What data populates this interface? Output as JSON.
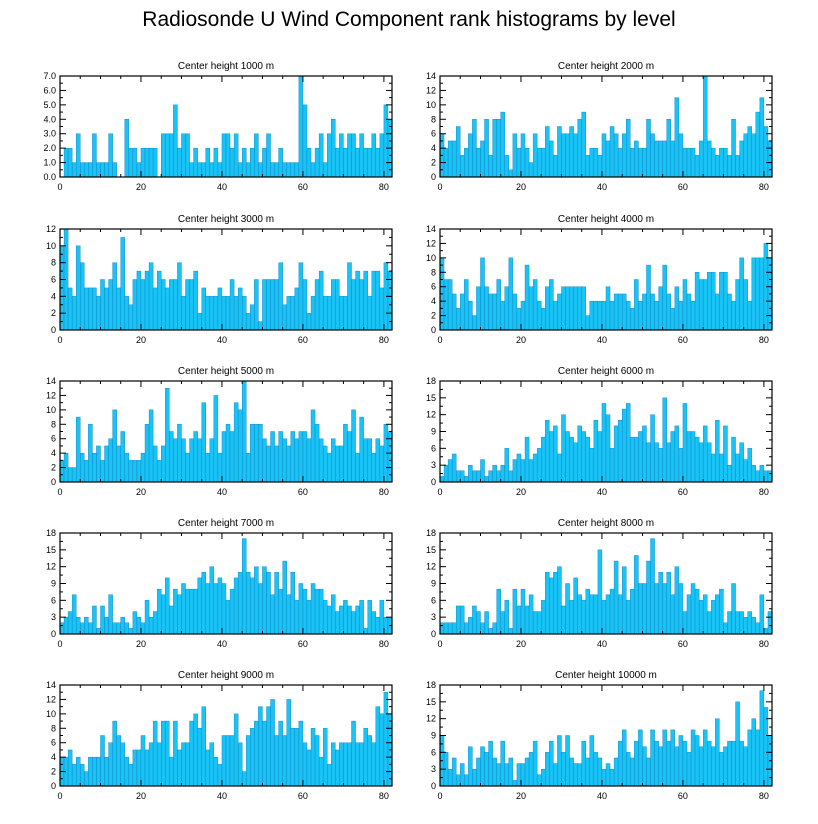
{
  "title": "Radiosonde U Wind Component rank histograms by level",
  "colors": {
    "bar": "#19c3f5",
    "bar_edge": "#0b7fbf"
  },
  "chart_data": [
    {
      "type": "bar",
      "title": "Center height 1000 m",
      "xlim": [
        0,
        82
      ],
      "xticks": [
        0,
        20,
        40,
        60,
        80
      ],
      "ylim": [
        0,
        7
      ],
      "yticks": [
        0,
        1,
        2,
        3,
        4,
        5,
        6,
        7
      ],
      "yticklabels": [
        "0.0",
        "1.0",
        "2.0",
        "3.0",
        "4.0",
        "5.0",
        "6.0",
        "7.0"
      ],
      "values": [
        0,
        2,
        2,
        1,
        3,
        1,
        1,
        1,
        3,
        1,
        1,
        1,
        3,
        1,
        0,
        0,
        4,
        2,
        2,
        1,
        2,
        2,
        2,
        2,
        0,
        3,
        3,
        3,
        5,
        2,
        3,
        3,
        1,
        2,
        1,
        1,
        2,
        1,
        2,
        1,
        3,
        3,
        2,
        3,
        1,
        2,
        1,
        2,
        3,
        1,
        2,
        3,
        1,
        1,
        2,
        1,
        1,
        1,
        1,
        7,
        5,
        2,
        1,
        2,
        3,
        1,
        3,
        4,
        2,
        3,
        2,
        3,
        3,
        2,
        3,
        2,
        2,
        3,
        2,
        3,
        5,
        4
      ]
    },
    {
      "type": "bar",
      "title": "Center height 2000 m",
      "xlim": [
        0,
        82
      ],
      "xticks": [
        0,
        20,
        40,
        60,
        80
      ],
      "ylim": [
        0,
        14
      ],
      "yticks": [
        0,
        2,
        4,
        6,
        8,
        10,
        12,
        14
      ],
      "yticklabels": [
        "0",
        "2",
        "4",
        "6",
        "8",
        "10",
        "12",
        "14"
      ],
      "values": [
        6,
        4,
        5,
        5,
        7,
        3,
        4,
        6,
        8,
        4,
        5,
        8,
        3,
        8,
        8,
        9,
        3,
        1,
        6,
        4,
        6,
        4,
        2,
        6,
        4,
        4,
        7,
        5,
        3,
        7,
        6,
        6,
        7,
        6,
        8,
        9,
        3,
        4,
        4,
        3,
        6,
        5,
        7,
        6,
        4,
        6,
        8,
        4,
        5,
        4,
        4,
        8,
        6,
        5,
        5,
        5,
        8,
        5,
        11,
        6,
        4,
        4,
        4,
        3,
        5,
        14,
        5,
        4,
        3,
        4,
        4,
        3,
        8,
        3,
        5,
        6,
        7,
        6,
        9,
        11,
        7,
        5
      ]
    },
    {
      "type": "bar",
      "title": "Center height 3000 m",
      "xlim": [
        0,
        82
      ],
      "xticks": [
        0,
        20,
        40,
        60,
        80
      ],
      "ylim": [
        0,
        12
      ],
      "yticks": [
        0,
        2,
        4,
        6,
        8,
        10,
        12
      ],
      "yticklabels": [
        "0",
        "2",
        "4",
        "6",
        "8",
        "10",
        "12"
      ],
      "values": [
        10,
        12,
        5,
        4,
        10,
        8,
        5,
        5,
        5,
        4,
        6,
        5,
        6,
        8,
        5,
        11,
        4,
        3,
        6,
        7,
        6,
        7,
        8,
        5,
        7,
        6,
        5,
        6,
        6,
        8,
        4,
        6,
        6,
        7,
        2,
        5,
        4,
        4,
        4,
        5,
        4,
        4,
        6,
        4,
        5,
        4,
        2,
        3,
        6,
        1,
        6,
        6,
        6,
        6,
        8,
        3,
        4,
        4,
        5,
        8,
        6,
        2,
        4,
        6,
        7,
        4,
        4,
        6,
        6,
        4,
        4,
        8,
        6,
        7,
        6,
        7,
        4,
        7,
        7,
        5,
        8,
        7
      ]
    },
    {
      "type": "bar",
      "title": "Center height 4000 m",
      "xlim": [
        0,
        82
      ],
      "xticks": [
        0,
        20,
        40,
        60,
        80
      ],
      "ylim": [
        0,
        14
      ],
      "yticks": [
        0,
        2,
        4,
        6,
        8,
        10,
        12,
        14
      ],
      "yticklabels": [
        "0",
        "2",
        "4",
        "6",
        "8",
        "10",
        "12",
        "14"
      ],
      "values": [
        10,
        7,
        7,
        5,
        3,
        5,
        7,
        4,
        2,
        6,
        10,
        6,
        5,
        5,
        7,
        4,
        6,
        10,
        5,
        3,
        4,
        9,
        6,
        7,
        4,
        3,
        6,
        7,
        4,
        5,
        6,
        6,
        6,
        6,
        6,
        6,
        2,
        4,
        4,
        4,
        4,
        6,
        4,
        5,
        5,
        5,
        4,
        3,
        7,
        4,
        5,
        9,
        5,
        4,
        6,
        9,
        5,
        3,
        6,
        4,
        7,
        5,
        4,
        8,
        7,
        7,
        8,
        8,
        5,
        8,
        8,
        5,
        4,
        7,
        10,
        7,
        4,
        10,
        10,
        10,
        12,
        10
      ]
    },
    {
      "type": "bar",
      "title": "Center height 5000 m",
      "xlim": [
        0,
        82
      ],
      "xticks": [
        0,
        20,
        40,
        60,
        80
      ],
      "ylim": [
        0,
        14
      ],
      "yticks": [
        0,
        2,
        4,
        6,
        8,
        10,
        12,
        14
      ],
      "yticklabels": [
        "0",
        "2",
        "4",
        "6",
        "8",
        "10",
        "12",
        "14"
      ],
      "values": [
        3,
        4,
        2,
        2,
        9,
        4,
        3,
        8,
        4,
        5,
        3,
        5,
        6,
        10,
        5,
        7,
        4,
        3,
        3,
        3,
        4,
        8,
        10,
        5,
        3,
        5,
        13,
        7,
        6,
        8,
        6,
        4,
        6,
        7,
        6,
        11,
        4,
        6,
        12,
        4,
        7,
        8,
        7,
        11,
        10,
        14,
        4,
        8,
        8,
        8,
        6,
        5,
        7,
        5,
        7,
        6,
        5,
        7,
        6,
        7,
        7,
        6,
        10,
        8,
        6,
        5,
        4,
        6,
        5,
        5,
        8,
        7,
        10,
        4,
        9,
        6,
        6,
        4,
        6,
        5,
        8,
        7
      ]
    },
    {
      "type": "bar",
      "title": "Center height 6000 m",
      "xlim": [
        0,
        82
      ],
      "xticks": [
        0,
        20,
        40,
        60,
        80
      ],
      "ylim": [
        0,
        18
      ],
      "yticks": [
        0,
        3,
        6,
        9,
        12,
        15,
        18
      ],
      "yticklabels": [
        "0",
        "3",
        "6",
        "9",
        "12",
        "15",
        "18"
      ],
      "values": [
        1,
        3,
        4,
        5,
        2,
        2,
        1,
        3,
        2,
        2,
        4,
        1,
        2,
        3,
        2,
        3,
        6,
        2,
        4,
        5,
        4,
        8,
        4,
        5,
        6,
        8,
        11,
        9,
        10,
        5,
        12,
        9,
        8,
        7,
        10,
        9,
        8,
        6,
        11,
        9,
        14,
        12,
        6,
        10,
        11,
        13,
        14,
        8,
        8,
        9,
        10,
        7,
        12,
        7,
        6,
        15,
        7,
        9,
        10,
        6,
        14,
        9,
        9,
        8,
        7,
        10,
        7,
        5,
        11,
        5,
        10,
        3,
        8,
        5,
        7,
        4,
        6,
        3,
        2,
        3,
        2,
        2
      ]
    },
    {
      "type": "bar",
      "title": "Center height 7000 m",
      "xlim": [
        0,
        82
      ],
      "xticks": [
        0,
        20,
        40,
        60,
        80
      ],
      "ylim": [
        0,
        18
      ],
      "yticks": [
        0,
        3,
        6,
        9,
        12,
        15,
        18
      ],
      "yticklabels": [
        "0",
        "3",
        "6",
        "9",
        "12",
        "15",
        "18"
      ],
      "values": [
        2,
        3,
        4,
        7,
        3,
        2,
        3,
        2,
        5,
        1,
        5,
        3,
        7,
        2,
        2,
        3,
        2,
        1,
        4,
        3,
        2,
        6,
        3,
        4,
        8,
        7,
        10,
        5,
        8,
        7,
        9,
        8,
        8,
        8,
        10,
        11,
        9,
        12,
        9,
        10,
        9,
        6,
        8,
        10,
        11,
        17,
        11,
        10,
        12,
        9,
        12,
        11,
        7,
        11,
        8,
        13,
        7,
        11,
        6,
        9,
        8,
        6,
        9,
        8,
        8,
        6,
        5,
        7,
        4,
        5,
        6,
        5,
        4,
        5,
        6,
        1,
        6,
        4,
        3,
        6,
        3,
        3
      ]
    },
    {
      "type": "bar",
      "title": "Center height 8000 m",
      "xlim": [
        0,
        82
      ],
      "xticks": [
        0,
        20,
        40,
        60,
        80
      ],
      "ylim": [
        0,
        18
      ],
      "yticks": [
        0,
        3,
        6,
        9,
        12,
        15,
        18
      ],
      "yticklabels": [
        "0",
        "3",
        "6",
        "9",
        "12",
        "15",
        "18"
      ],
      "values": [
        2,
        2,
        2,
        2,
        5,
        5,
        2,
        3,
        5,
        4,
        2,
        4,
        1,
        2,
        8,
        4,
        6,
        1,
        8,
        5,
        8,
        5,
        7,
        4,
        4,
        6,
        11,
        10,
        11,
        12,
        5,
        9,
        6,
        10,
        7,
        6,
        8,
        7,
        7,
        15,
        6,
        7,
        8,
        13,
        7,
        12,
        6,
        8,
        14,
        9,
        9,
        13,
        17,
        9,
        11,
        9,
        11,
        7,
        12,
        9,
        4,
        7,
        9,
        8,
        6,
        7,
        4,
        6,
        7,
        8,
        2,
        4,
        9,
        4,
        4,
        3,
        4,
        3,
        2,
        7,
        1,
        4
      ]
    },
    {
      "type": "bar",
      "title": "Center height 9000 m",
      "xlim": [
        0,
        82
      ],
      "xticks": [
        0,
        20,
        40,
        60,
        80
      ],
      "ylim": [
        0,
        14
      ],
      "yticks": [
        0,
        2,
        4,
        6,
        8,
        10,
        12,
        14
      ],
      "yticklabels": [
        "0",
        "2",
        "4",
        "6",
        "8",
        "10",
        "12",
        "14"
      ],
      "values": [
        4,
        4,
        5,
        3,
        4,
        3,
        2,
        4,
        4,
        4,
        7,
        4,
        6,
        9,
        7,
        6,
        4,
        3,
        5,
        5,
        7,
        5,
        6,
        9,
        6,
        9,
        9,
        4,
        9,
        5,
        6,
        6,
        9,
        10,
        8,
        11,
        5,
        6,
        4,
        3,
        7,
        7,
        7,
        10,
        6,
        2,
        7,
        8,
        9,
        11,
        9,
        11,
        12,
        7,
        9,
        7,
        12,
        8,
        8,
        9,
        6,
        5,
        8,
        7,
        4,
        8,
        3,
        6,
        5,
        6,
        6,
        6,
        9,
        6,
        6,
        8,
        7,
        6,
        11,
        10,
        13,
        10
      ]
    },
    {
      "type": "bar",
      "title": "Center height 10000 m",
      "xlim": [
        0,
        82
      ],
      "xticks": [
        0,
        20,
        40,
        60,
        80
      ],
      "ylim": [
        0,
        18
      ],
      "yticks": [
        0,
        3,
        6,
        9,
        12,
        15,
        18
      ],
      "yticklabels": [
        "0",
        "3",
        "6",
        "9",
        "12",
        "15",
        "18"
      ],
      "values": [
        9,
        6,
        3,
        5,
        2,
        4,
        2,
        7,
        3,
        5,
        7,
        6,
        8,
        5,
        4,
        8,
        4,
        5,
        1,
        4,
        4,
        5,
        6,
        8,
        2,
        3,
        6,
        8,
        4,
        9,
        6,
        9,
        5,
        4,
        4,
        8,
        5,
        9,
        6,
        5,
        3,
        4,
        3,
        5,
        8,
        10,
        6,
        5,
        8,
        10,
        7,
        5,
        10,
        8,
        7,
        10,
        8,
        10,
        7,
        9,
        8,
        6,
        10,
        9,
        7,
        10,
        8,
        7,
        12,
        6,
        7,
        8,
        8,
        15,
        8,
        7,
        10,
        12,
        10,
        17,
        14,
        9
      ]
    }
  ]
}
